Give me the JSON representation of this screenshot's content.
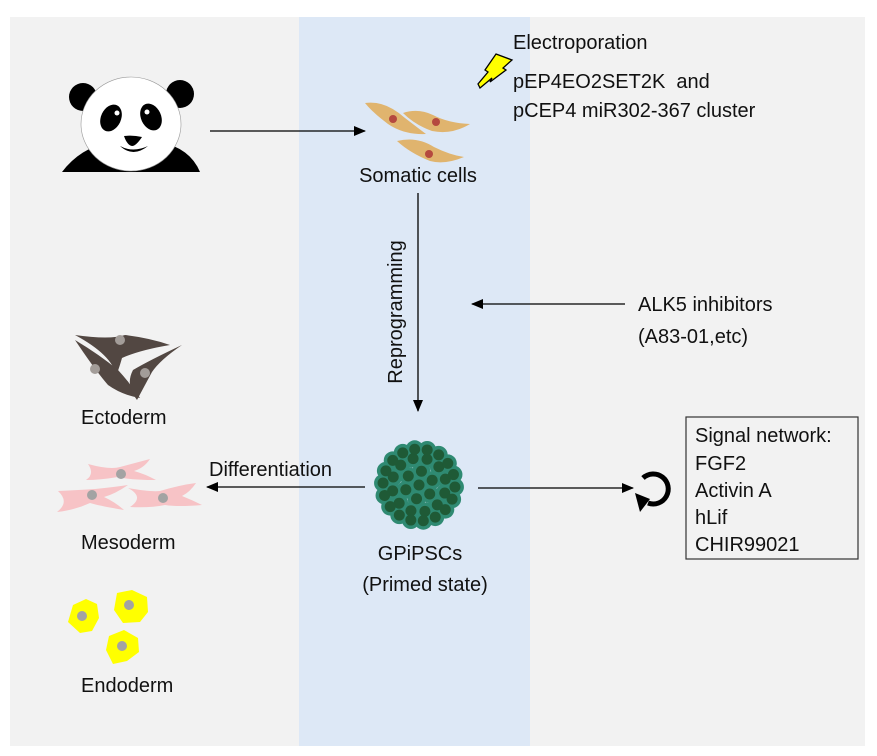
{
  "colors": {
    "panel": "#f2f2f2",
    "band": "#dde8f6",
    "somatic": "#e0b46e",
    "nucleus_somatic": "#b5493f",
    "ectoderm": "#524742",
    "mesoderm": "#f7c3c6",
    "endoderm": "#ffff00",
    "ipsc": "#2f8a72",
    "ipsc_inner": "#1f5a36",
    "bolt": "#ffff00"
  },
  "top": {
    "electroporation": "Electroporation",
    "plasmid_line1": "pEP4EO2SET2K  and",
    "plasmid_line2": "pCEP4 miR302-367 cluster"
  },
  "somatic": {
    "label": "Somatic cells"
  },
  "reprogramming": {
    "label": "Reprogramming"
  },
  "alk5": {
    "line1": "ALK5 inhibitors",
    "line2": "(A83-01,etc)"
  },
  "ipsc": {
    "line1": "GPiPSCs",
    "line2": "(Primed state)"
  },
  "differentiation": {
    "label": "Differentiation"
  },
  "lineages": {
    "ectoderm": "Ectoderm",
    "mesoderm": "Mesoderm",
    "endoderm": "Endoderm"
  },
  "signal": {
    "title": "Signal network:",
    "items": [
      "FGF2",
      "Activin A",
      "hLif",
      "CHIR99021"
    ]
  }
}
